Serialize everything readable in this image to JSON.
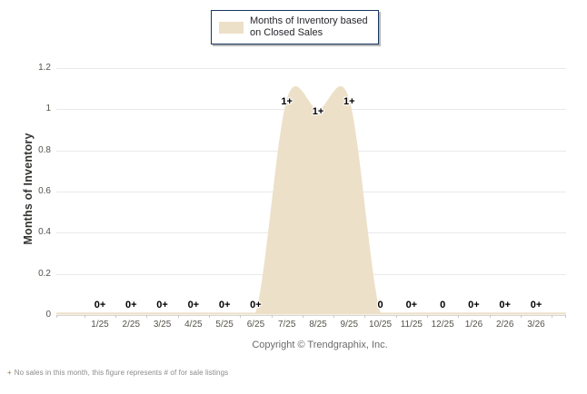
{
  "legend": {
    "label": "Months of Inventory based on Closed Sales"
  },
  "chart_data": {
    "type": "area",
    "title": "Months of Inventory based on Closed Sales",
    "xlabel": "",
    "ylabel": "Months of Inventory",
    "ylim": [
      0,
      1.2
    ],
    "yticks": [
      0,
      0.2,
      0.4,
      0.6,
      0.8,
      1,
      1.2
    ],
    "ytick_labels": [
      "0",
      "0.2",
      "0.4",
      "0.6",
      "0.8",
      "1",
      "1.2"
    ],
    "categories": [
      "1/25",
      "2/25",
      "3/25",
      "4/25",
      "5/25",
      "6/25",
      "7/25",
      "8/25",
      "9/25",
      "10/25",
      "11/25",
      "12/25",
      "1/26",
      "2/26",
      "3/26"
    ],
    "values": [
      0,
      0,
      0,
      0,
      0,
      0,
      1.05,
      1.0,
      1.05,
      0,
      0,
      0,
      0,
      0,
      0
    ],
    "point_labels": [
      "0+",
      "0+",
      "0+",
      "0+",
      "0+",
      "0+",
      "1+",
      "1+",
      "1+",
      "0",
      "0+",
      "0",
      "0+",
      "0+",
      "0+"
    ],
    "grid": true,
    "legend_position": "top-center",
    "colors": {
      "area_fill": "#EDE0C8",
      "legend_border": "#17375E",
      "grid_line": "#E9E9E9",
      "axis_line": "#D5D5D5",
      "tick_mark": "#C9C9C9",
      "axis_text": "#54524B",
      "label_text": "#000000"
    }
  },
  "footer": {
    "copyright": "Copyright © Trendgraphix, Inc."
  },
  "footnote": {
    "marker": "+",
    "text": "No sales in this month, this figure represents # of for sale listings"
  }
}
